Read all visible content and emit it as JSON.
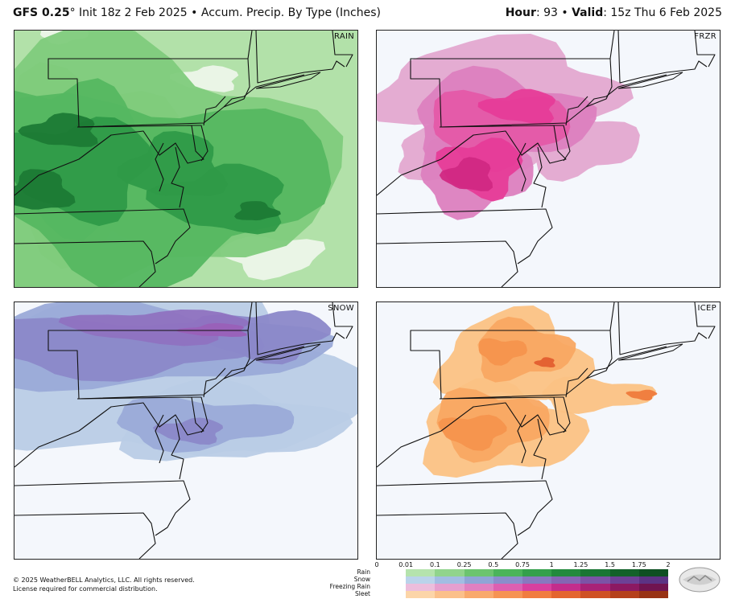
{
  "header": {
    "model": "GFS 0.25",
    "degree": "°",
    "init": " Init 18z 2 Feb 2025",
    "sep": " • ",
    "product": "Accum. Precip. By Type (Inches)",
    "hour_label": "Hour",
    "hour_value": ": 93",
    "valid_label": "Valid",
    "valid_value": ": 15z Thu 6 Feb 2025"
  },
  "panels": [
    {
      "label": "RAIN",
      "theme": "rain",
      "colors": [
        "#b2e1a9",
        "#7fcb7c",
        "#55b761",
        "#2f9a48",
        "#1c7a35"
      ]
    },
    {
      "label": "FRZR",
      "theme": "frzr",
      "colors": [
        "#e3a8d0",
        "#dc7fbf",
        "#e458a8",
        "#e63c98",
        "#d12883"
      ]
    },
    {
      "label": "SNOW",
      "theme": "snow",
      "colors": [
        "#b9cce6",
        "#9aaad8",
        "#8b88c9",
        "#8f72c0",
        "#9a60b8"
      ]
    },
    {
      "label": "ICEP",
      "theme": "icep",
      "colors": [
        "#fbc284",
        "#f9a862",
        "#f6944d",
        "#ef7b3c",
        "#e35e2f"
      ]
    }
  ],
  "legend": {
    "ticks": [
      "0",
      "0.01",
      "0.1",
      "0.25",
      "0.5",
      "0.75",
      "1",
      "1.25",
      "1.5",
      "1.75",
      "2"
    ],
    "rows": [
      {
        "name": "Rain",
        "colors": [
          "#b5e3ad",
          "#91d48c",
          "#6cc46f",
          "#4bb45a",
          "#34a04b",
          "#238a3d",
          "#1a7634",
          "#13612a",
          "#0e4f22"
        ]
      },
      {
        "name": "Snow",
        "colors": [
          "#bad3ea",
          "#a2bde2",
          "#8fa5d6",
          "#8a8ecb",
          "#8879bf",
          "#8566b3",
          "#7c53a6",
          "#6d4196",
          "#5c3384"
        ]
      },
      {
        "name": "Freezing Rain",
        "colors": [
          "#ecbddc",
          "#e59fcf",
          "#e080c1",
          "#dd5fb1",
          "#d8409f",
          "#c32d8c",
          "#a82277",
          "#8c1962",
          "#701450"
        ]
      },
      {
        "name": "Sleet",
        "colors": [
          "#fcd5a8",
          "#fbc08a",
          "#f9a96c",
          "#f69353",
          "#f17c3f",
          "#e4652f",
          "#cf5124",
          "#b5401b",
          "#983214"
        ]
      }
    ]
  },
  "footer": {
    "line1": "© 2025 WeatherBELL Analytics, LLC. All rights reserved.",
    "line2": "License required for commercial distribution."
  },
  "logo": {
    "icon": "weatherbell-logo-icon"
  }
}
